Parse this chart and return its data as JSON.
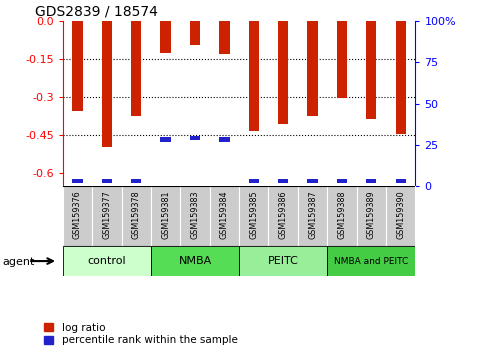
{
  "title": "GDS2839 / 18574",
  "samples": [
    "GSM159376",
    "GSM159377",
    "GSM159378",
    "GSM159381",
    "GSM159383",
    "GSM159384",
    "GSM159385",
    "GSM159386",
    "GSM159387",
    "GSM159388",
    "GSM159389",
    "GSM159390"
  ],
  "log_ratio": [
    -0.355,
    -0.495,
    -0.375,
    -0.125,
    -0.095,
    -0.13,
    -0.435,
    -0.405,
    -0.375,
    -0.305,
    -0.385,
    -0.445
  ],
  "pct_rank_right_axis": [
    3,
    3,
    3,
    28,
    29,
    28,
    3,
    3,
    3,
    3,
    3,
    3
  ],
  "groups": [
    {
      "label": "control",
      "indices": [
        0,
        1,
        2
      ],
      "color": "#ccffcc"
    },
    {
      "label": "NMBA",
      "indices": [
        3,
        4,
        5
      ],
      "color": "#55dd55"
    },
    {
      "label": "PEITC",
      "indices": [
        6,
        7,
        8
      ],
      "color": "#99ee99"
    },
    {
      "label": "NMBA and PEITC",
      "indices": [
        9,
        10,
        11
      ],
      "color": "#44cc44"
    }
  ],
  "ylim_left": [
    -0.65,
    0.0
  ],
  "ylim_right": [
    0,
    100
  ],
  "yticks_left": [
    0.0,
    -0.15,
    -0.3,
    -0.45,
    -0.6
  ],
  "yticks_right": [
    0,
    25,
    50,
    75,
    100
  ],
  "bar_color": "#cc2200",
  "pct_color": "#2222cc",
  "background_color": "#ffffff",
  "legend_log": "log ratio",
  "legend_pct": "percentile rank within the sample",
  "bar_width": 0.35,
  "pct_bar_width": 0.35
}
